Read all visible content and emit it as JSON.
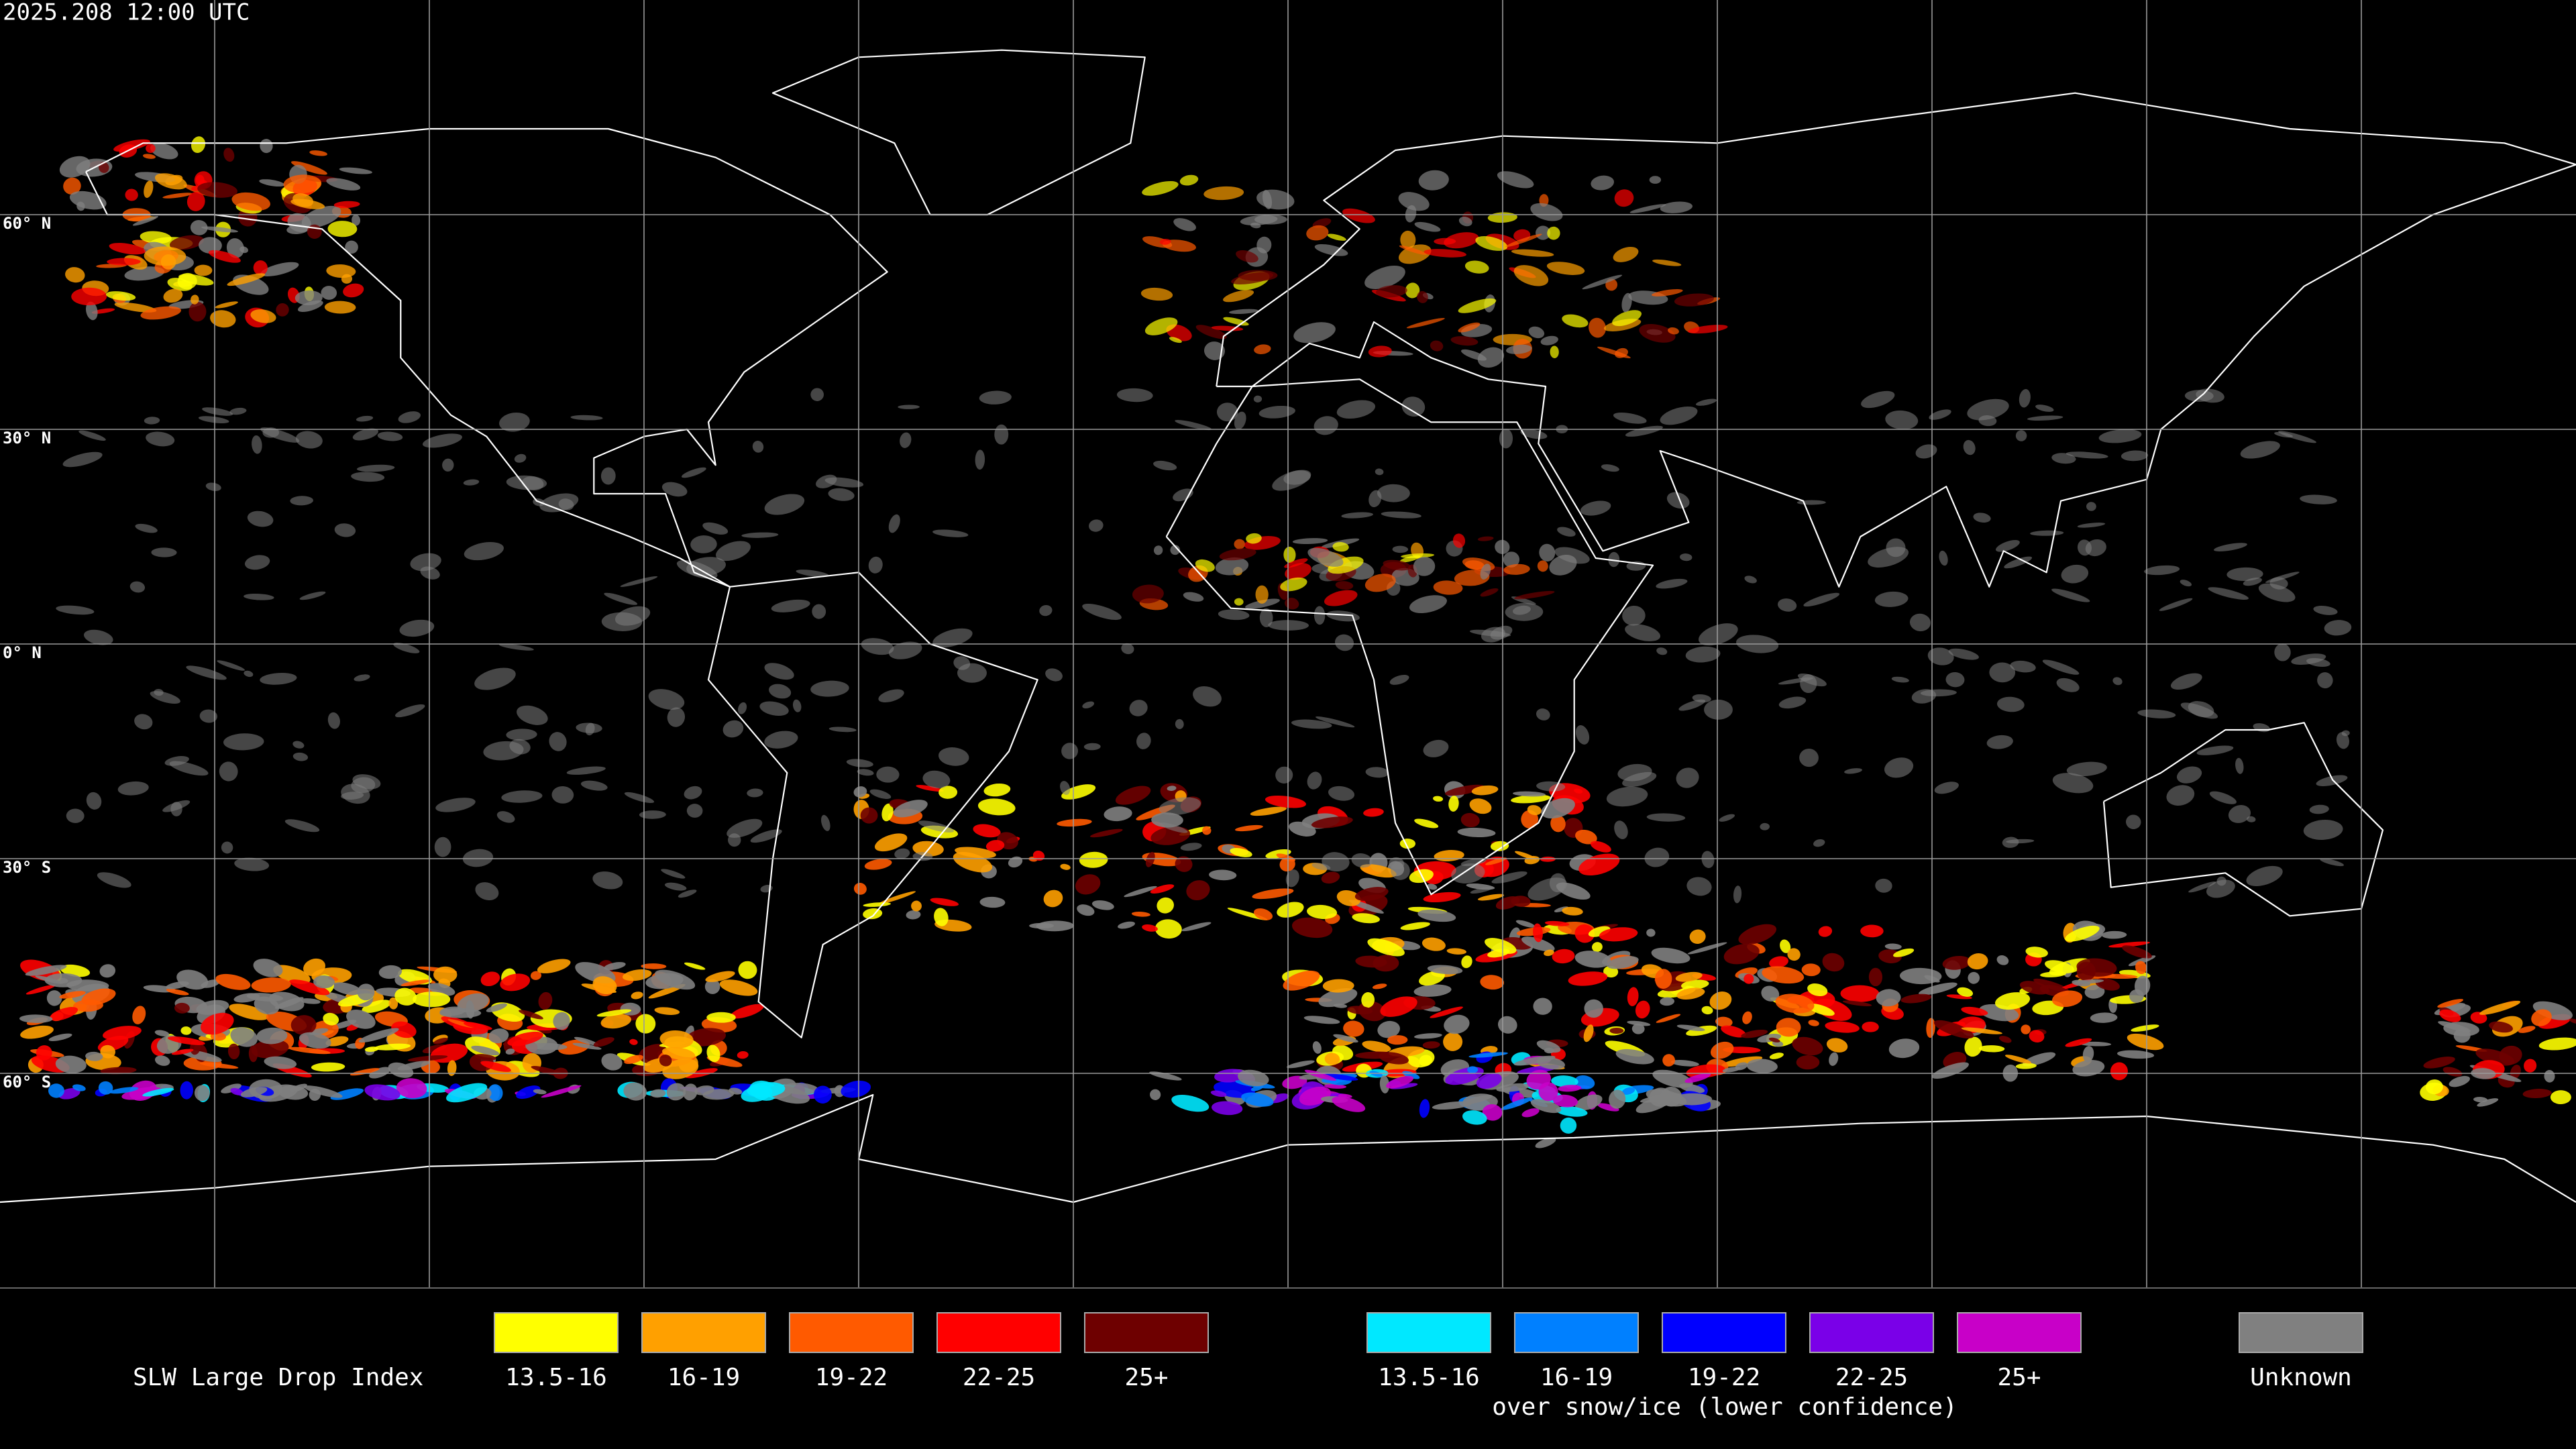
{
  "header": {
    "timestamp": "2025.208 12:00 UTC"
  },
  "map": {
    "lat_labels": [
      "60° N",
      "30° N",
      "0° N",
      "30° S",
      "60° S"
    ]
  },
  "legend": {
    "title": "SLW Large Drop Index",
    "normal": [
      {
        "label": "13.5-16",
        "color": "#ffff00"
      },
      {
        "label": "16-19",
        "color": "#ffa000"
      },
      {
        "label": "19-22",
        "color": "#ff5a00"
      },
      {
        "label": "22-25",
        "color": "#ff0000"
      },
      {
        "label": "25+",
        "color": "#6e0000"
      }
    ],
    "snow_ice": [
      {
        "label": "13.5-16",
        "color": "#00e8ff"
      },
      {
        "label": "16-19",
        "color": "#0080ff"
      },
      {
        "label": "19-22",
        "color": "#0000ff"
      },
      {
        "label": "22-25",
        "color": "#7a00e8"
      },
      {
        "label": "25+",
        "color": "#c800c8"
      }
    ],
    "snow_ice_note": "over snow/ice (lower confidence)",
    "unknown": {
      "label": "Unknown",
      "color": "#808080"
    }
  }
}
